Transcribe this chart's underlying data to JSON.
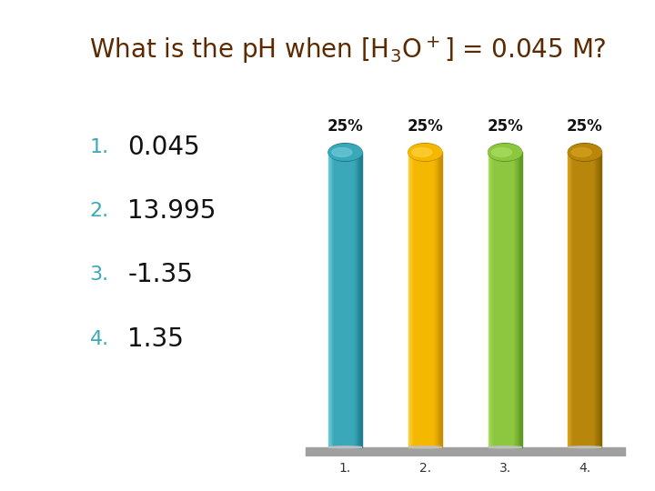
{
  "title_line1": "What is the p",
  "title_pH": "H",
  "title_line2": " when [H",
  "title_sub": "3",
  "title_line3": "O",
  "title_sup": "+",
  "title_line4": "] = 0.045 M?",
  "title_color": "#5C2A00",
  "title_fontsize": 20,
  "categories": [
    "1.",
    "2.",
    "3.",
    "4."
  ],
  "values": [
    25,
    25,
    25,
    25
  ],
  "bar_colors": [
    "#3AA8B8",
    "#F5B800",
    "#8DC63F",
    "#B8860B"
  ],
  "bar_highlight_colors": [
    "#6DCAD8",
    "#FFD040",
    "#AADD60",
    "#D4A020"
  ],
  "bar_shadow_colors": [
    "#1A7888",
    "#C08800",
    "#5A9620",
    "#806000"
  ],
  "bar_labels": [
    "25%",
    "25%",
    "25%",
    "25%"
  ],
  "answer_labels": [
    "0.045",
    "13.995",
    "-1.35",
    "1.35"
  ],
  "answer_numbers": [
    "1.",
    "2.",
    "3.",
    "4."
  ],
  "answer_color": "#111111",
  "answer_number_color": "#3AA8B8",
  "background_color": "#FFFFFF",
  "left_panel_color": "#E8D9B0",
  "bar_label_fontsize": 12,
  "answer_fontsize": 20,
  "answer_number_fontsize": 16,
  "xlabels_fontsize": 10,
  "ylim": [
    0,
    30
  ]
}
